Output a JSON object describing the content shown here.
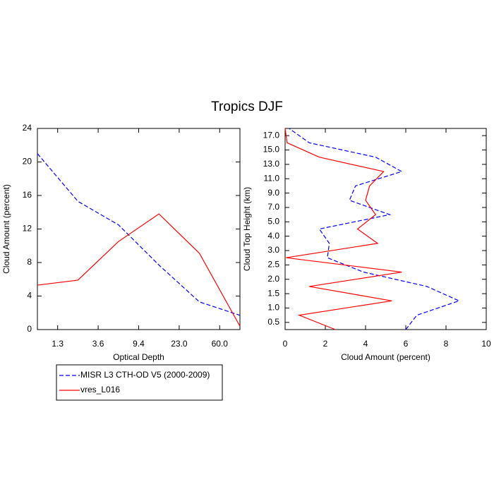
{
  "title": "Tropics DJF",
  "chart_data": [
    {
      "type": "line",
      "orientation": "vertical",
      "x_label": "Optical Depth",
      "y_label": "Cloud Amount (percent)",
      "x": [
        0,
        1,
        2,
        3,
        4,
        5
      ],
      "xlim": [
        0,
        5
      ],
      "xticks": [
        {
          "value": 0.5,
          "label": "1.3"
        },
        {
          "value": 1.5,
          "label": "3.6"
        },
        {
          "value": 2.5,
          "label": "9.4"
        },
        {
          "value": 3.5,
          "label": "23.0"
        },
        {
          "value": 4.5,
          "label": "60.0"
        }
      ],
      "ylim": [
        0,
        24
      ],
      "yticks": [
        0,
        4,
        8,
        12,
        16,
        20,
        24
      ],
      "legend": "below",
      "series": [
        {
          "name": "MISR L3 CTH-OD V5 (2000-2009)",
          "color": "#0000ff",
          "line_style": "dashed",
          "values": [
            21,
            15.3,
            12.5,
            7.7,
            3.3,
            1.7
          ]
        },
        {
          "name": "vres_L016",
          "color": "#ff0000",
          "line_style": "solid",
          "values": [
            5.3,
            5.9,
            10.5,
            13.8,
            9.1,
            0.4
          ]
        }
      ]
    },
    {
      "type": "line",
      "orientation": "horizontal",
      "x_label": "Cloud Amount (percent)",
      "y_label": "Cloud Top Height (km)",
      "y": [
        0,
        1,
        2,
        3,
        4,
        5,
        6,
        7,
        8,
        9,
        10,
        11,
        12,
        13,
        14
      ],
      "ylim": [
        0,
        14
      ],
      "yticks": [
        {
          "value": 0.5,
          "label": "0.5"
        },
        {
          "value": 1.5,
          "label": "1.0"
        },
        {
          "value": 2.5,
          "label": "1.5"
        },
        {
          "value": 3.5,
          "label": "2.0"
        },
        {
          "value": 4.5,
          "label": "2.5"
        },
        {
          "value": 5.5,
          "label": "3.0"
        },
        {
          "value": 6.5,
          "label": "4.0"
        },
        {
          "value": 7.5,
          "label": "5.0"
        },
        {
          "value": 8.5,
          "label": "7.0"
        },
        {
          "value": 9.5,
          "label": "9.0"
        },
        {
          "value": 10.5,
          "label": "11.0"
        },
        {
          "value": 11.5,
          "label": "13.0"
        },
        {
          "value": 12.5,
          "label": "15.0"
        },
        {
          "value": 13.5,
          "label": "17.0"
        }
      ],
      "xlim": [
        0,
        10
      ],
      "xticks": [
        0,
        2,
        4,
        6,
        8,
        10
      ],
      "series": [
        {
          "name": "MISR L3 CTH-OD V5 (2000-2009)",
          "color": "#0000ff",
          "line_style": "dashed",
          "values": [
            6.0,
            6.55,
            8.65,
            7.05,
            3.9,
            2.1,
            2.2,
            1.7,
            5.2,
            3.2,
            3.5,
            5.8,
            4.5,
            1.2,
            0.2
          ]
        },
        {
          "name": "vres_L016",
          "color": "#ff0000",
          "line_style": "solid",
          "values": [
            2.5,
            0.7,
            5.3,
            1.2,
            5.8,
            0.05,
            4.6,
            3.6,
            4.5,
            4.0,
            4.2,
            4.9,
            1.7,
            0.1,
            0
          ]
        }
      ]
    }
  ]
}
